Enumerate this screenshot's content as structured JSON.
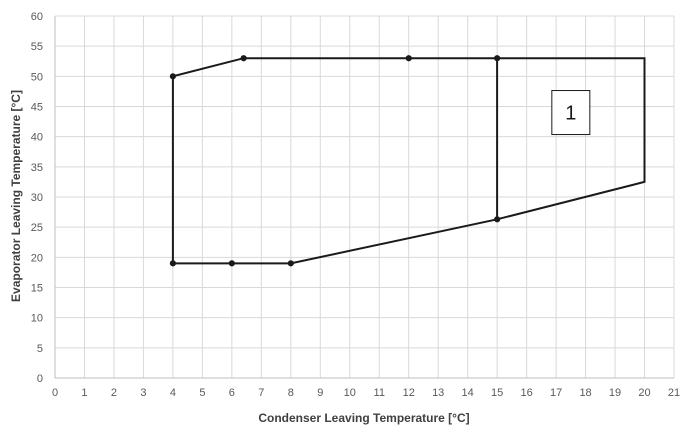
{
  "chart_data": {
    "type": "line",
    "xlabel": "Condenser Leaving Temperature [°C]",
    "ylabel": "Evaporator Leaving Temperature [°C]",
    "xlim": [
      0,
      21
    ],
    "ylim": [
      0,
      60
    ],
    "x_ticks": [
      0,
      1,
      2,
      3,
      4,
      5,
      6,
      7,
      8,
      9,
      10,
      11,
      12,
      13,
      14,
      15,
      16,
      17,
      18,
      19,
      20,
      21
    ],
    "y_ticks": [
      0,
      5,
      10,
      15,
      20,
      25,
      30,
      35,
      40,
      45,
      50,
      55,
      60
    ],
    "grid": true,
    "legend": "none",
    "series": [
      {
        "points": [
          [
            4,
            19
          ],
          [
            6,
            19
          ],
          [
            8,
            19
          ],
          [
            15,
            26.3
          ],
          [
            20,
            32.5
          ],
          [
            20,
            53
          ],
          [
            15,
            53
          ],
          [
            12,
            53
          ],
          [
            6.4,
            53
          ],
          [
            4,
            50
          ],
          [
            4,
            19
          ]
        ],
        "markers": [
          [
            4,
            19
          ],
          [
            6,
            19
          ],
          [
            8,
            19
          ],
          [
            15,
            26.3
          ],
          [
            15,
            53
          ],
          [
            12,
            53
          ],
          [
            6.4,
            53
          ],
          [
            4,
            50
          ]
        ]
      },
      {
        "points": [
          [
            15,
            26.3
          ],
          [
            15,
            53
          ]
        ]
      }
    ],
    "annotations": [
      {
        "text": "1",
        "x": 17.5,
        "y": 44
      }
    ]
  }
}
